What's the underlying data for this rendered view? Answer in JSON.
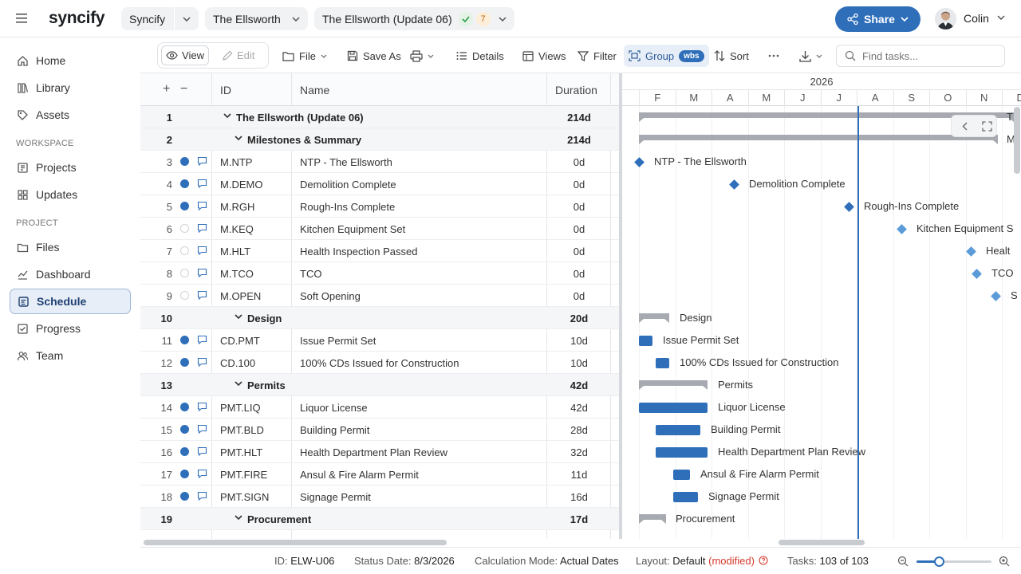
{
  "app": {
    "logo": "syncify"
  },
  "header": {
    "workspace": "Syncify",
    "project": "The Ellsworth",
    "update": "The Ellsworth (Update 06)",
    "update_badge": "7",
    "share_label": "Share",
    "user_name": "Colin"
  },
  "sidebar": {
    "items_top": [
      {
        "label": "Home",
        "icon": "home-icon"
      },
      {
        "label": "Library",
        "icon": "library-icon"
      },
      {
        "label": "Assets",
        "icon": "assets-icon"
      }
    ],
    "workspace_title": "WORKSPACE",
    "items_workspace": [
      {
        "label": "Projects",
        "icon": "projects-icon"
      },
      {
        "label": "Updates",
        "icon": "updates-icon"
      }
    ],
    "project_title": "PROJECT",
    "items_project": [
      {
        "label": "Files",
        "icon": "files-icon"
      },
      {
        "label": "Dashboard",
        "icon": "dashboard-icon"
      },
      {
        "label": "Schedule",
        "icon": "schedule-icon",
        "active": true
      },
      {
        "label": "Progress",
        "icon": "progress-icon"
      },
      {
        "label": "Team",
        "icon": "team-icon"
      }
    ]
  },
  "toolbar": {
    "view": "View",
    "edit": "Edit",
    "file": "File",
    "save_as": "Save As",
    "details": "Details",
    "views": "Views",
    "filter": "Filter",
    "group": "Group",
    "group_badge": "wbs",
    "sort": "Sort",
    "search_placeholder": "Find tasks..."
  },
  "grid": {
    "headers": {
      "plus": "+",
      "minus": "−",
      "id": "ID",
      "name": "Name",
      "duration": "Duration"
    },
    "rows": [
      {
        "num": "1",
        "type": "group",
        "level": 0,
        "name": "The Ellsworth (Update 06)",
        "duration": "214d"
      },
      {
        "num": "2",
        "type": "group",
        "level": 1,
        "name": "Milestones & Summary",
        "duration": "214d"
      },
      {
        "num": "3",
        "type": "task",
        "status": "filled",
        "id": "M.NTP",
        "name": "NTP - The Ellsworth",
        "duration": "0d"
      },
      {
        "num": "4",
        "type": "task",
        "status": "filled",
        "id": "M.DEMO",
        "name": "Demolition Complete",
        "duration": "0d"
      },
      {
        "num": "5",
        "type": "task",
        "status": "filled",
        "id": "M.RGH",
        "name": "Rough-Ins Complete",
        "duration": "0d"
      },
      {
        "num": "6",
        "type": "task",
        "status": "empty",
        "id": "M.KEQ",
        "name": "Kitchen Equipment Set",
        "duration": "0d"
      },
      {
        "num": "7",
        "type": "task",
        "status": "empty",
        "id": "M.HLT",
        "name": "Health Inspection Passed",
        "duration": "0d"
      },
      {
        "num": "8",
        "type": "task",
        "status": "empty",
        "id": "M.TCO",
        "name": "TCO",
        "duration": "0d"
      },
      {
        "num": "9",
        "type": "task",
        "status": "empty",
        "id": "M.OPEN",
        "name": "Soft Opening",
        "duration": "0d"
      },
      {
        "num": "10",
        "type": "group",
        "level": 1,
        "name": "Design",
        "duration": "20d"
      },
      {
        "num": "11",
        "type": "task",
        "status": "filled",
        "id": "CD.PMT",
        "name": "Issue Permit Set",
        "duration": "10d"
      },
      {
        "num": "12",
        "type": "task",
        "status": "filled",
        "id": "CD.100",
        "name": "100% CDs Issued for Construction",
        "duration": "10d"
      },
      {
        "num": "13",
        "type": "group",
        "level": 1,
        "name": "Permits",
        "duration": "42d"
      },
      {
        "num": "14",
        "type": "task",
        "status": "filled",
        "id": "PMT.LIQ",
        "name": "Liquor License",
        "duration": "42d"
      },
      {
        "num": "15",
        "type": "task",
        "status": "filled",
        "id": "PMT.BLD",
        "name": "Building Permit",
        "duration": "28d"
      },
      {
        "num": "16",
        "type": "task",
        "status": "filled",
        "id": "PMT.HLT",
        "name": "Health Department Plan Review",
        "duration": "32d"
      },
      {
        "num": "17",
        "type": "task",
        "status": "filled",
        "id": "PMT.FIRE",
        "name": "Ansul & Fire Alarm Permit",
        "duration": "11d"
      },
      {
        "num": "18",
        "type": "task",
        "status": "filled",
        "id": "PMT.SIGN",
        "name": "Signage Permit",
        "duration": "16d"
      },
      {
        "num": "19",
        "type": "group",
        "level": 1,
        "name": "Procurement",
        "duration": "17d"
      }
    ]
  },
  "gantt": {
    "year": "2026",
    "months": [
      "F",
      "M",
      "A",
      "M",
      "J",
      "J",
      "A",
      "S",
      "O",
      "N",
      "D"
    ],
    "labels": {
      "r1": "T",
      "r2": "M",
      "r3": "NTP - The Ellsworth",
      "r4": "Demolition Complete",
      "r5": "Rough-Ins Complete",
      "r6": "Kitchen Equipment S",
      "r7": "Healt",
      "r8": "TCO",
      "r9": "S",
      "r10": "Design",
      "r11": "Issue Permit Set",
      "r12": "100% CDs Issued for Construction",
      "r13": "Permits",
      "r14": "Liquor License",
      "r15": "Building Permit",
      "r16": "Health Department Plan Review",
      "r17": "Ansul & Fire Alarm Permit",
      "r18": "Signage Permit",
      "r19": "Procurement"
    }
  },
  "status": {
    "id_label": "ID:",
    "id_value": "ELW-U06",
    "date_label": "Status Date:",
    "date_value": "8/3/2026",
    "calc_label": "Calculation Mode:",
    "calc_value": "Actual Dates",
    "layout_label": "Layout:",
    "layout_value": "Default",
    "layout_mod": "(modified)",
    "tasks_label": "Tasks:",
    "tasks_value": "103 of 103",
    "zoom_fraction": 0.3
  },
  "colors": {
    "accent": "#2f6fba",
    "milestone_light": "#5b9bd8",
    "summary": "#a7abb1"
  }
}
